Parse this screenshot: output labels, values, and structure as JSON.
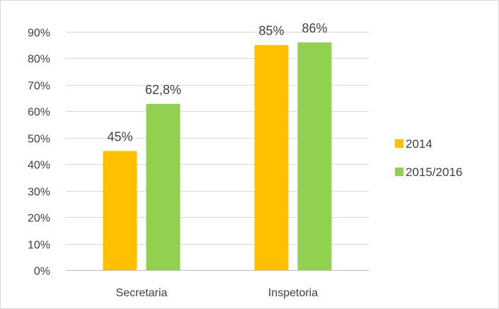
{
  "chart_data": {
    "type": "bar",
    "title": "",
    "xlabel": "",
    "ylabel": "",
    "categories": [
      "Secretaria",
      "Inspetoria"
    ],
    "series": [
      {
        "name": "2014",
        "values": [
          45,
          85
        ],
        "labels": [
          "45%",
          "85%"
        ],
        "color": "#FFC000"
      },
      {
        "name": "2015/2016",
        "values": [
          62.8,
          86
        ],
        "labels": [
          "62,8%",
          "86%"
        ],
        "color": "#92D050"
      }
    ],
    "ylim": [
      0,
      90
    ],
    "y_ticks": [
      0,
      10,
      20,
      30,
      40,
      50,
      60,
      70,
      80,
      90
    ],
    "y_tick_labels": [
      "0%",
      "10%",
      "20%",
      "30%",
      "40%",
      "50%",
      "60%",
      "70%",
      "80%",
      "90%"
    ],
    "grid": true,
    "legend_position": "right"
  }
}
